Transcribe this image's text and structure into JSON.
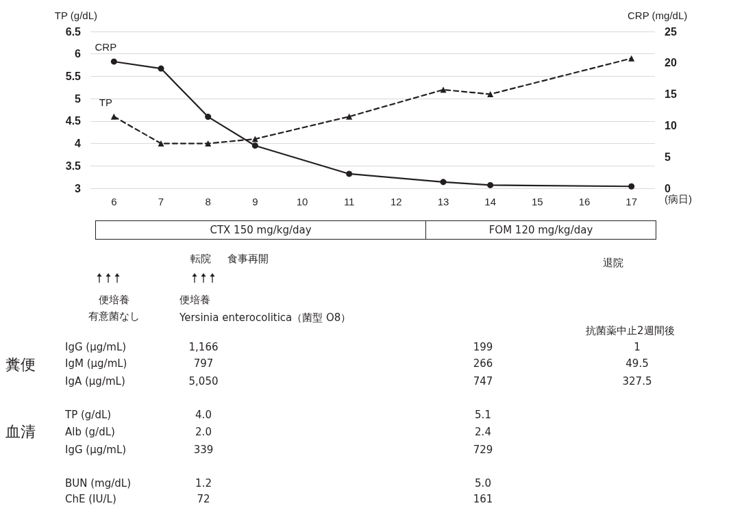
{
  "chart_data": {
    "type": "line",
    "xlabel": "(病日)",
    "ylabel": "TP (g/dL)",
    "y2label": "CRP (mg/dL)",
    "categories": [
      "6",
      "7",
      "8",
      "9",
      "10",
      "11",
      "12",
      "13",
      "14",
      "15",
      "16",
      "17"
    ],
    "series": [
      {
        "name": "CRP",
        "color": "#231f20",
        "axis": "y2",
        "marker": "circle",
        "line_style": "solid",
        "values": [
          20.2,
          19.1,
          11.4,
          6.8,
          null,
          2.3,
          null,
          1.0,
          0.5,
          null,
          null,
          0.3
        ]
      },
      {
        "name": "TP",
        "color": "#231f20",
        "axis": "y",
        "marker": "triangle",
        "line_style": "dashed",
        "values": [
          4.6,
          4.0,
          4.0,
          4.1,
          null,
          4.6,
          null,
          5.2,
          5.1,
          null,
          null,
          5.9
        ]
      }
    ],
    "ylim": [
      3,
      6.5
    ],
    "yticks": [
      3,
      3.5,
      4,
      4.5,
      5,
      5.5,
      6,
      6.5
    ],
    "y2lim": [
      0,
      25
    ],
    "y2ticks": [
      0,
      5,
      10,
      15,
      20,
      25
    ],
    "grid": "y",
    "annotations": [
      "CTX 150 mg/kg/day",
      "FOM 120 mg/kg/day",
      "転院",
      "食事再開",
      "退院",
      "便培養",
      "有意菌なし",
      "便培養",
      "Yersinia enterocolitica（菌型 O8）",
      "抗菌薬中止2週間後",
      "糞便",
      "IgG (μg/mL)",
      "1,166",
      "199",
      "1",
      "IgM (μg/mL)",
      "797",
      "266",
      "49.5",
      "IgA (μg/mL)",
      "5,050",
      "747",
      "327.5",
      "血清",
      "TP (g/dL)",
      "4.0",
      "5.1",
      "Alb (g/dL)",
      "2.0",
      "2.4",
      "IgG (μg/mL)",
      "339",
      "729",
      "BUN (mg/dL)",
      "1.2",
      "5.0",
      "ChE (IU/L)",
      "72",
      "161"
    ]
  }
}
